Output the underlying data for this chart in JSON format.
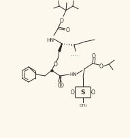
{
  "bg": "#fcf8ee",
  "lc": "#2a2520",
  "figsize": [
    1.91,
    2.03
  ],
  "dpi": 100,
  "xlim": [
    0,
    191
  ],
  "ylim": [
    0,
    203
  ]
}
